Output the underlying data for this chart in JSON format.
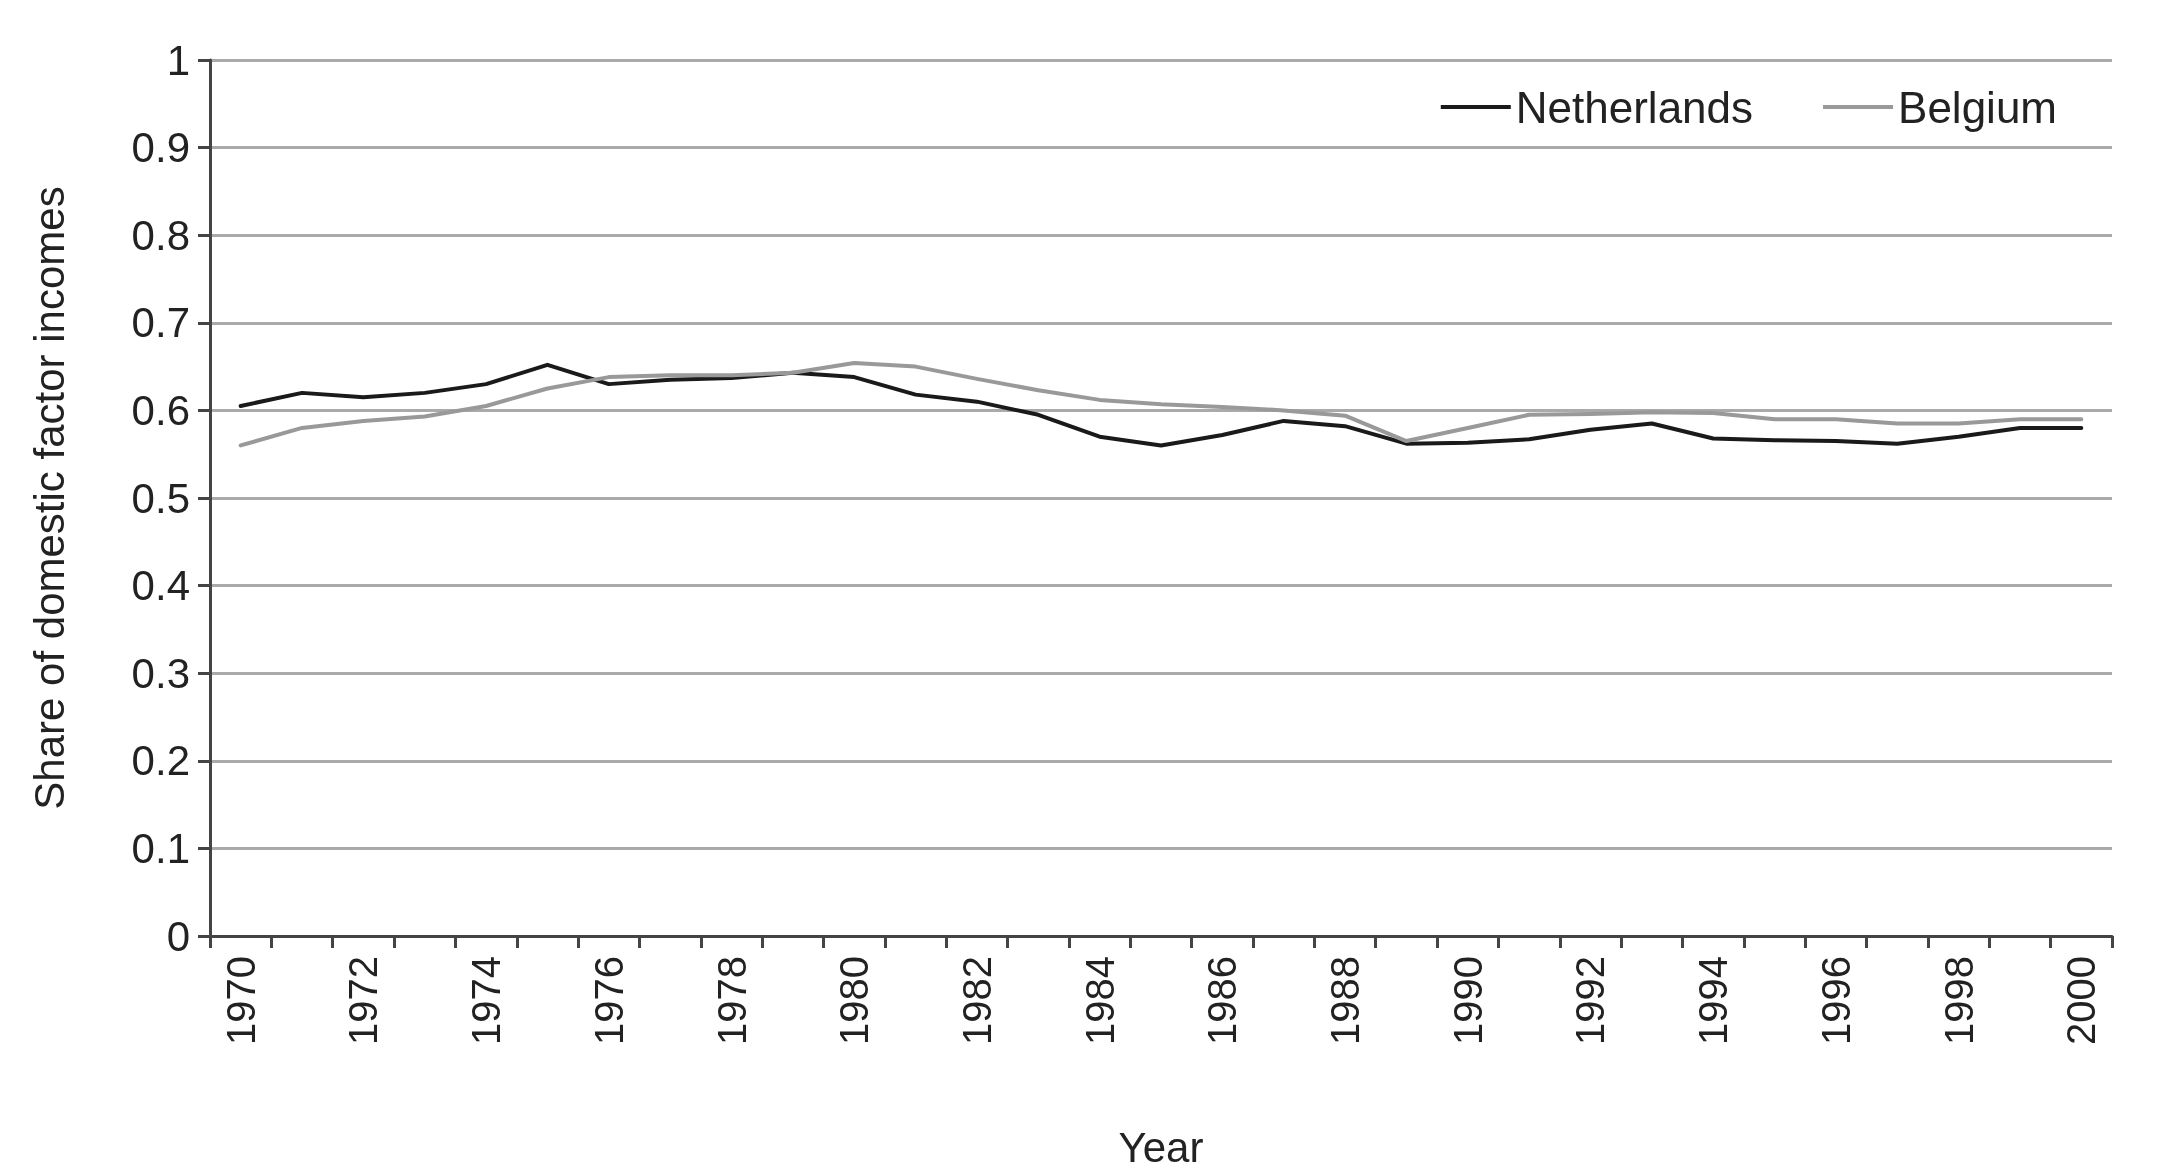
{
  "chart_data": {
    "type": "line",
    "xlabel": "Year",
    "ylabel": "Share of domestic factor incomes",
    "categories": [
      "1970",
      null,
      "1972",
      null,
      "1974",
      null,
      "1976",
      null,
      "1978",
      null,
      "1980",
      null,
      "1982",
      null,
      "1984",
      null,
      "1986",
      null,
      "1988",
      null,
      "1990",
      null,
      "1992",
      null,
      "1994",
      null,
      "1996",
      null,
      "1998",
      null,
      "2000"
    ],
    "series": [
      {
        "name": "Netherlands",
        "color": "#1a1a1a",
        "values": [
          0.605,
          0.62,
          0.615,
          0.62,
          0.63,
          0.652,
          0.63,
          0.635,
          0.637,
          0.643,
          0.638,
          0.618,
          0.61,
          0.595,
          0.57,
          0.56,
          0.572,
          0.588,
          0.582,
          0.562,
          0.563,
          0.567,
          0.578,
          0.585,
          0.568,
          0.566,
          0.565,
          0.562,
          0.57,
          0.58,
          0.58
        ]
      },
      {
        "name": "Belgium",
        "color": "#999999",
        "values": [
          0.56,
          0.58,
          0.588,
          0.593,
          0.605,
          0.625,
          0.638,
          0.64,
          0.64,
          0.643,
          0.654,
          0.65,
          0.636,
          0.623,
          0.612,
          0.607,
          0.604,
          0.6,
          0.594,
          0.565,
          0.58,
          0.595,
          0.596,
          0.598,
          0.597,
          0.59,
          0.59,
          0.585,
          0.585,
          0.59,
          0.59
        ]
      }
    ],
    "ylim": [
      0,
      1
    ],
    "yticks": [
      0,
      0.1,
      0.2,
      0.3,
      0.4,
      0.5,
      0.6,
      0.7,
      0.8,
      0.9,
      1
    ],
    "grid": "y",
    "legend": "top right",
    "marker": "none",
    "line_style": "solid"
  }
}
